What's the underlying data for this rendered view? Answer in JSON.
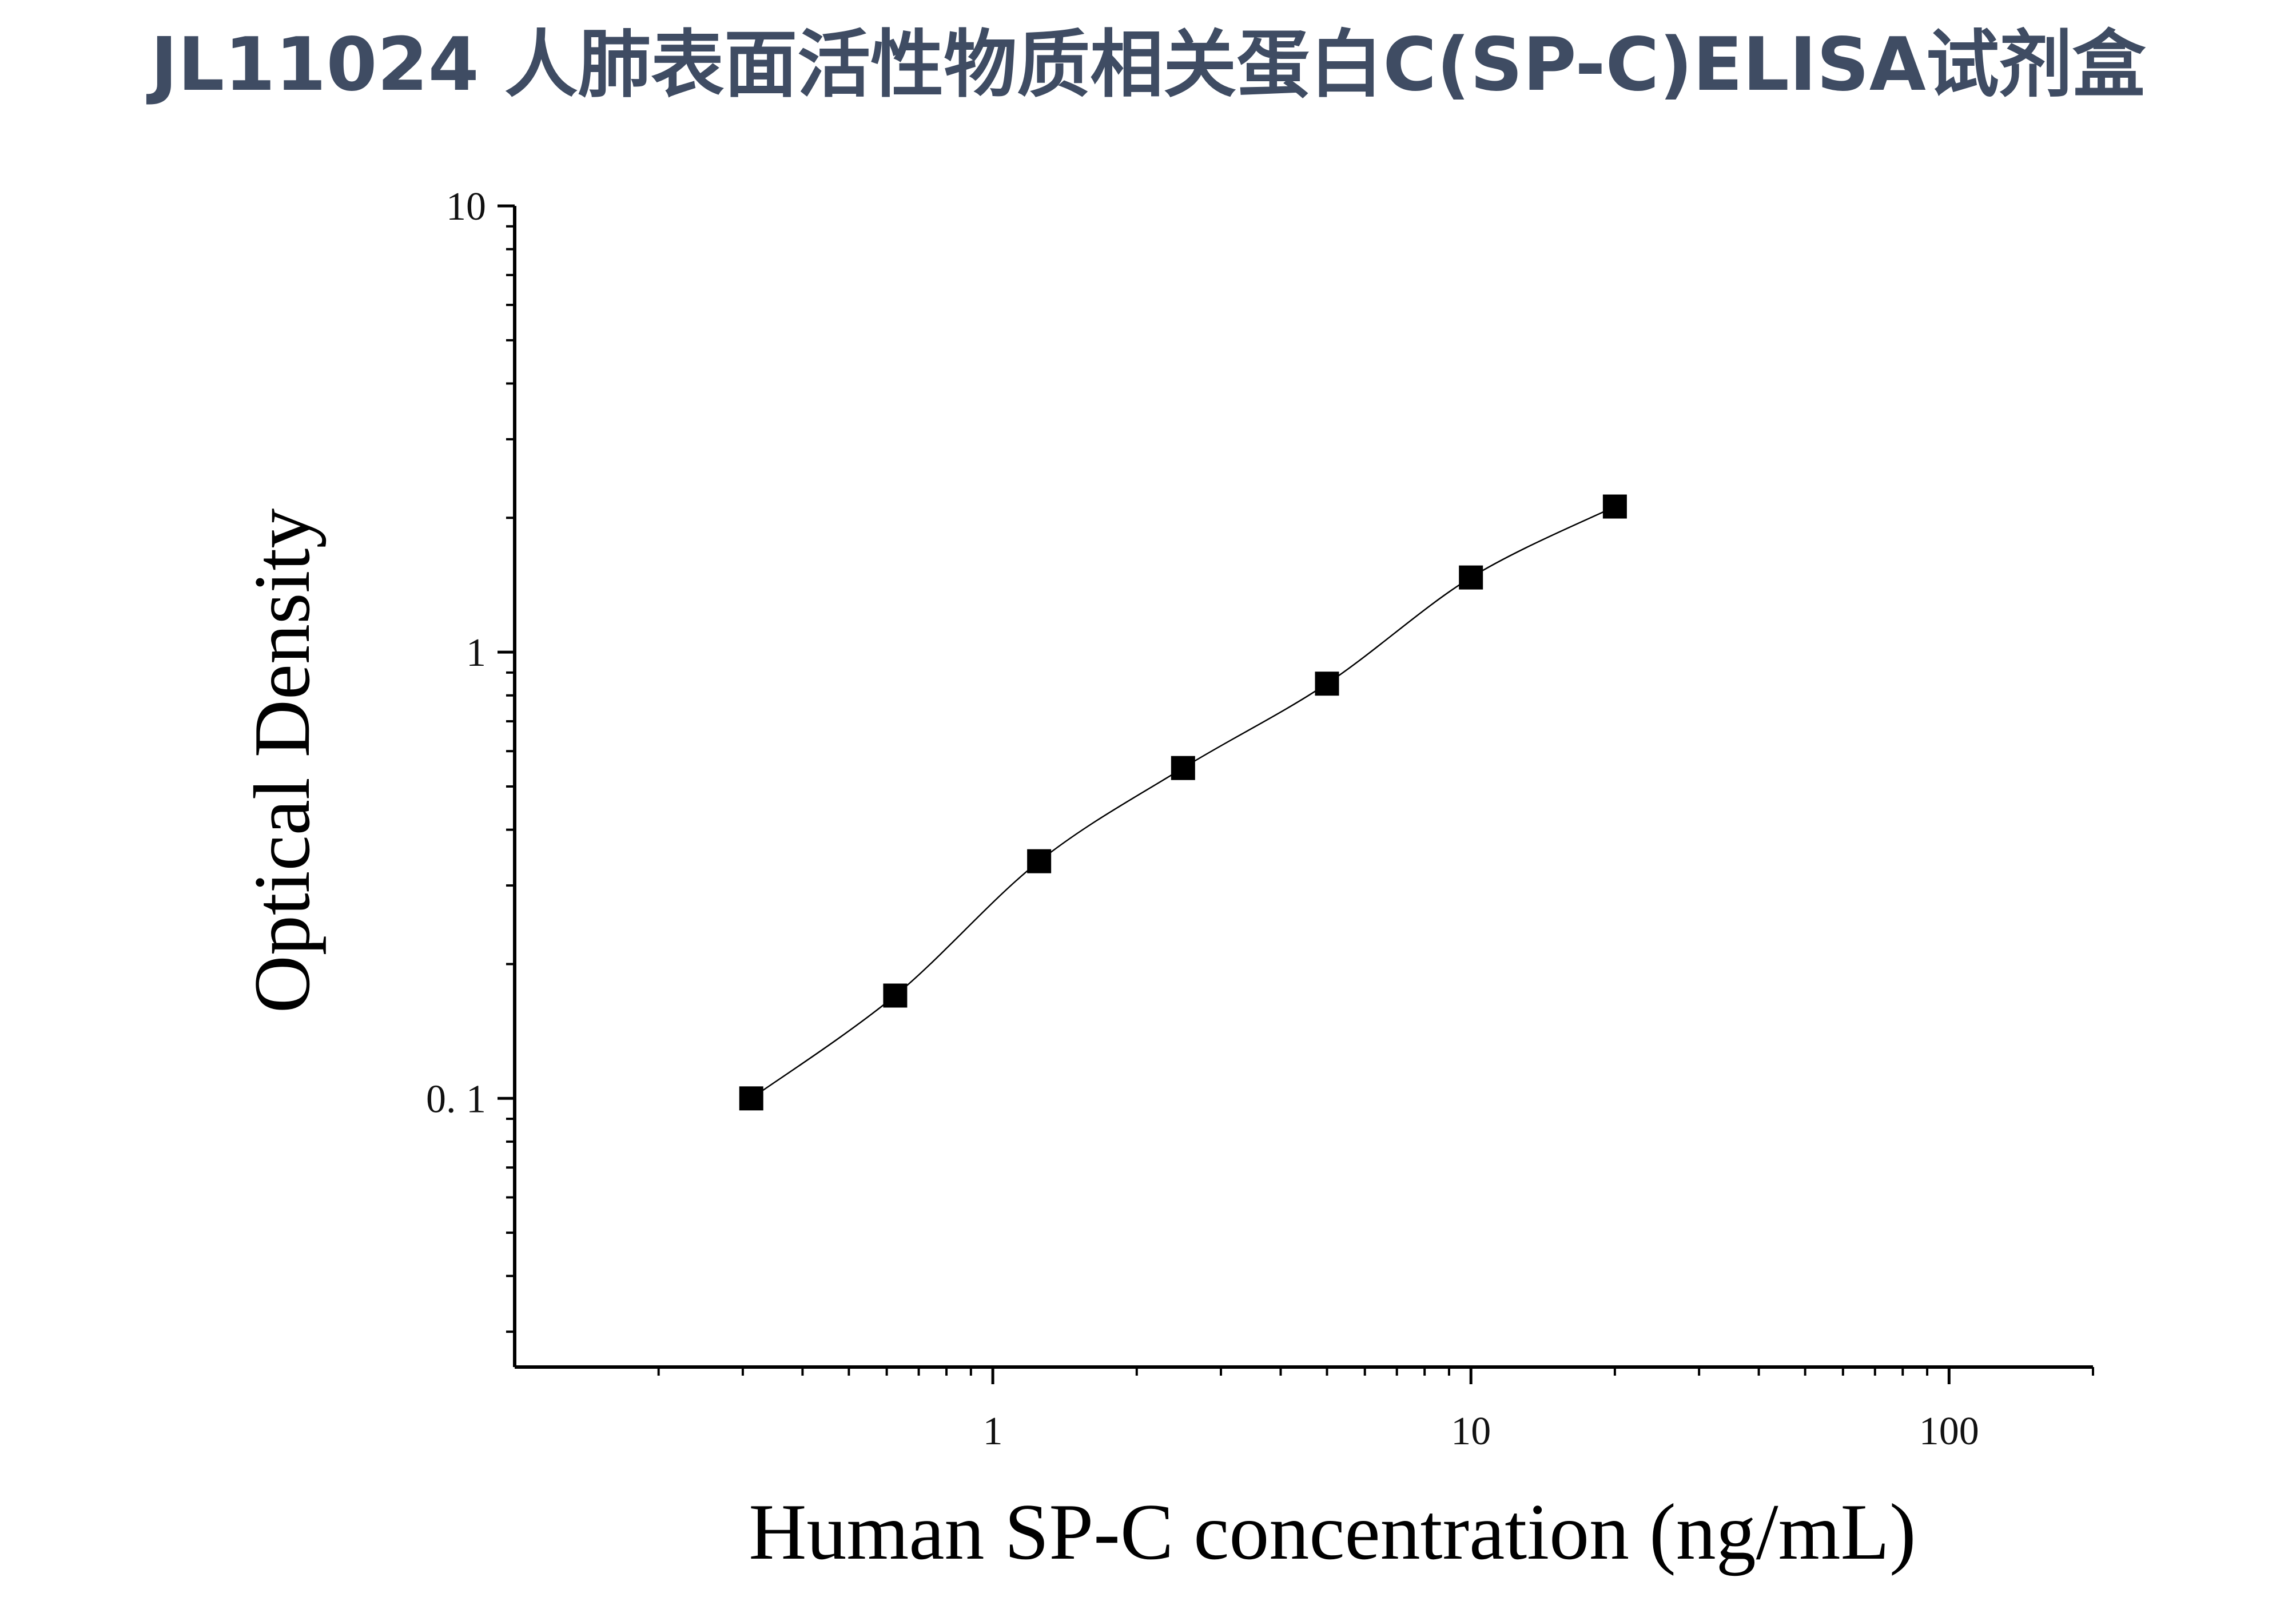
{
  "chart_data": {
    "type": "scatter",
    "title": "JL11024 人肺表面活性物质相关蛋白C(SP-C)ELISA试剂盒",
    "xlabel": "Human SP-C concentration (ng/mL)",
    "ylabel": "Optical Density",
    "xscale": "log",
    "yscale": "log",
    "xlim": [
      0.1,
      200
    ],
    "ylim": [
      0.025,
      10
    ],
    "x_ticks": [
      {
        "value": 1,
        "label": "1"
      },
      {
        "value": 10,
        "label": "10"
      },
      {
        "value": 100,
        "label": "100"
      }
    ],
    "y_ticks": [
      {
        "value": 0.1,
        "label": "0. 1"
      },
      {
        "value": 1,
        "label": "1"
      },
      {
        "value": 10,
        "label": "10"
      }
    ],
    "grid": false,
    "legend": "none",
    "marker_color": "#000000",
    "fit_line": true,
    "series": [
      {
        "marker": "square",
        "x": [
          0.3125,
          0.625,
          1.25,
          2.5,
          5,
          10,
          20
        ],
        "y": [
          0.1,
          0.17,
          0.34,
          0.55,
          0.85,
          1.47,
          2.12
        ]
      }
    ]
  }
}
